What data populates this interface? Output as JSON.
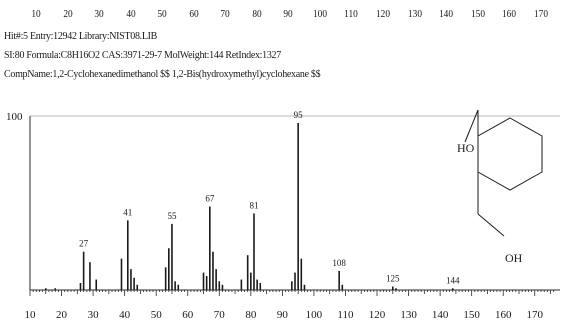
{
  "top_axis_labels": [
    "10",
    "20",
    "30",
    "40",
    "50",
    "60",
    "70",
    "80",
    "90",
    "100",
    "110",
    "120",
    "130",
    "140",
    "150",
    "160",
    "170"
  ],
  "header": {
    "line1": "Hit#:5  Entry:12942  Library:NIST08.LIB",
    "line2": "SI:80  Formula:C8H16O2  CAS:3971-29-7  MolWeight:144  RetIndex:1327",
    "line3": "CompName:1,2-Cyclohexanedimethanol $$ 1,2-Bis(hydroxymethyl)cyclohexane $$"
  },
  "structure": {
    "label_top": "HO",
    "label_bottom": "OH"
  },
  "chart_data": {
    "type": "bar",
    "title": "",
    "xlabel": "",
    "ylabel": "",
    "xlim": [
      10,
      178
    ],
    "ylim": [
      0,
      100
    ],
    "y_tick_labels": [
      "100"
    ],
    "x_ticks": [
      10,
      20,
      30,
      40,
      50,
      60,
      70,
      80,
      90,
      100,
      110,
      120,
      130,
      140,
      150,
      160,
      170
    ],
    "peaks": [
      {
        "mz": 15,
        "intensity": 1
      },
      {
        "mz": 18,
        "intensity": 1
      },
      {
        "mz": 26,
        "intensity": 4
      },
      {
        "mz": 27,
        "intensity": 22
      },
      {
        "mz": 29,
        "intensity": 16
      },
      {
        "mz": 31,
        "intensity": 6
      },
      {
        "mz": 39,
        "intensity": 18
      },
      {
        "mz": 41,
        "intensity": 40
      },
      {
        "mz": 42,
        "intensity": 12
      },
      {
        "mz": 43,
        "intensity": 7
      },
      {
        "mz": 44,
        "intensity": 3
      },
      {
        "mz": 53,
        "intensity": 13
      },
      {
        "mz": 54,
        "intensity": 24
      },
      {
        "mz": 55,
        "intensity": 38
      },
      {
        "mz": 56,
        "intensity": 5
      },
      {
        "mz": 57,
        "intensity": 3
      },
      {
        "mz": 65,
        "intensity": 10
      },
      {
        "mz": 66,
        "intensity": 8
      },
      {
        "mz": 67,
        "intensity": 48
      },
      {
        "mz": 68,
        "intensity": 22
      },
      {
        "mz": 69,
        "intensity": 12
      },
      {
        "mz": 70,
        "intensity": 5
      },
      {
        "mz": 71,
        "intensity": 3
      },
      {
        "mz": 77,
        "intensity": 6
      },
      {
        "mz": 79,
        "intensity": 20
      },
      {
        "mz": 80,
        "intensity": 10
      },
      {
        "mz": 81,
        "intensity": 44
      },
      {
        "mz": 82,
        "intensity": 6
      },
      {
        "mz": 83,
        "intensity": 4
      },
      {
        "mz": 93,
        "intensity": 5
      },
      {
        "mz": 94,
        "intensity": 10
      },
      {
        "mz": 95,
        "intensity": 96
      },
      {
        "mz": 96,
        "intensity": 18
      },
      {
        "mz": 97,
        "intensity": 3
      },
      {
        "mz": 108,
        "intensity": 11
      },
      {
        "mz": 109,
        "intensity": 3
      },
      {
        "mz": 125,
        "intensity": 2
      },
      {
        "mz": 126,
        "intensity": 1
      },
      {
        "mz": 144,
        "intensity": 1
      }
    ],
    "labeled_peaks": [
      {
        "mz": 27,
        "label": "27"
      },
      {
        "mz": 41,
        "label": "41"
      },
      {
        "mz": 55,
        "label": "55"
      },
      {
        "mz": 67,
        "label": "67"
      },
      {
        "mz": 81,
        "label": "81"
      },
      {
        "mz": 95,
        "label": "95"
      },
      {
        "mz": 108,
        "label": "108"
      },
      {
        "mz": 125,
        "label": "125"
      },
      {
        "mz": 144,
        "label": "144"
      }
    ]
  },
  "colors": {
    "ink": "#1a1a1a",
    "axis": "#2a2a2a",
    "background": "#ffffff"
  }
}
